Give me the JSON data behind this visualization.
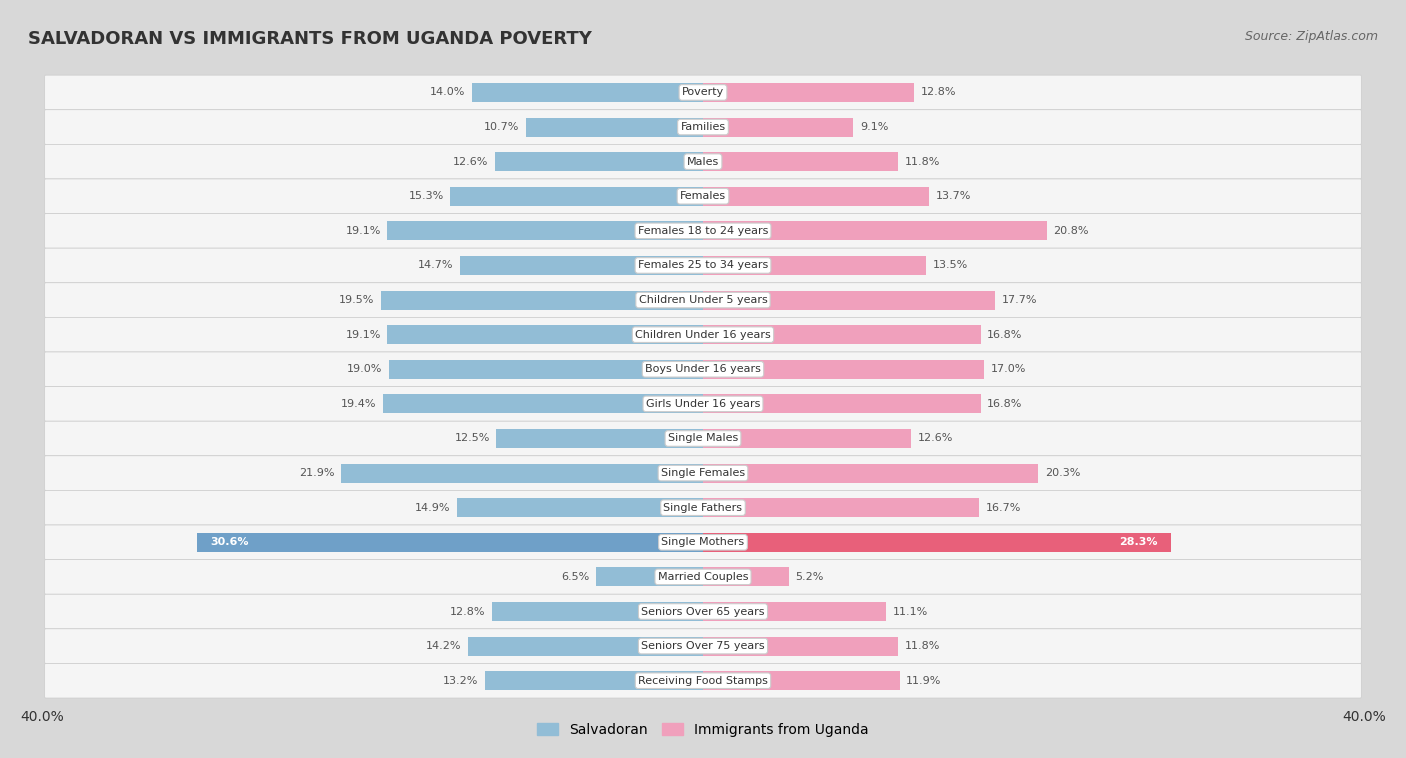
{
  "title": "SALVADORAN VS IMMIGRANTS FROM UGANDA POVERTY",
  "source": "Source: ZipAtlas.com",
  "categories": [
    "Poverty",
    "Families",
    "Males",
    "Females",
    "Females 18 to 24 years",
    "Females 25 to 34 years",
    "Children Under 5 years",
    "Children Under 16 years",
    "Boys Under 16 years",
    "Girls Under 16 years",
    "Single Males",
    "Single Females",
    "Single Fathers",
    "Single Mothers",
    "Married Couples",
    "Seniors Over 65 years",
    "Seniors Over 75 years",
    "Receiving Food Stamps"
  ],
  "salvadoran": [
    14.0,
    10.7,
    12.6,
    15.3,
    19.1,
    14.7,
    19.5,
    19.1,
    19.0,
    19.4,
    12.5,
    21.9,
    14.9,
    30.6,
    6.5,
    12.8,
    14.2,
    13.2
  ],
  "uganda": [
    12.8,
    9.1,
    11.8,
    13.7,
    20.8,
    13.5,
    17.7,
    16.8,
    17.0,
    16.8,
    12.6,
    20.3,
    16.7,
    28.3,
    5.2,
    11.1,
    11.8,
    11.9
  ],
  "salvadoran_color": "#92bdd6",
  "uganda_color": "#f0a0bc",
  "salvadoran_color_highlight": "#6fa0c8",
  "uganda_color_highlight": "#e8607a",
  "row_bg_white": "#f5f5f5",
  "row_bg_gray": "#e8e8e8",
  "page_bg": "#d8d8d8",
  "axis_limit": 40.0,
  "bar_height": 0.55,
  "legend_label_left": "Salvadoran",
  "legend_label_right": "Immigrants from Uganda"
}
